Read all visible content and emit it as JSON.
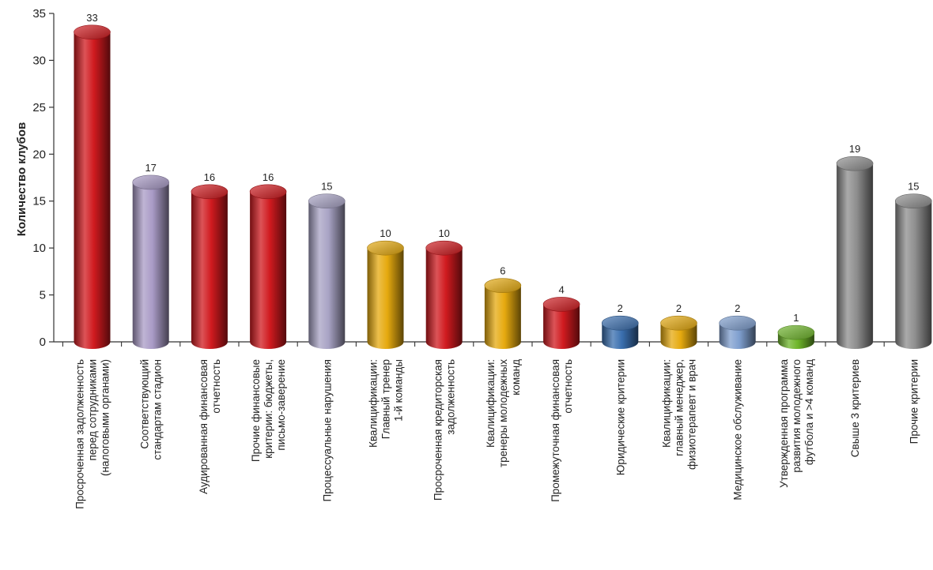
{
  "chart_data": {
    "type": "bar",
    "title": "",
    "xlabel": "",
    "ylabel": "Количество клубов",
    "ylim": [
      0,
      35
    ],
    "yticks": [
      0,
      5,
      10,
      15,
      20,
      25,
      30,
      35
    ],
    "grid": false,
    "legend": "none",
    "categories": [
      "Просроченная задолженность перед сотрудниками (налоговыми органами)",
      "Соответствующий стандартам стадион",
      "Аудированная финансовая отчетность",
      "Прочие финансовые критерии: бюджеты, письмо-заверение",
      "Процессуальные нарушения",
      "Квалицификации: Главный тренер 1-й команды",
      "Просроченная кредиторская задолженность",
      "Квалицификации: тренеры молодежных команд",
      "Промежуточная финансовая отчетность",
      "Юридические критерии",
      "Квалицификации: главный менеджер, физиотерапевт и врач",
      "Медицинское обслуживание",
      "Утвержденная программа развития молодежного футбола и >4 команд",
      "Свыше 3 критериев",
      "Прочие критерии"
    ],
    "category_lines": [
      [
        "Просроченная задолженность",
        "перед сотрудниками",
        "(налоговыми органами)"
      ],
      [
        "Соответствующий",
        "стандартам стадион"
      ],
      [
        "Аудированная финансовая",
        "отчетность"
      ],
      [
        "Прочие финансовые",
        "критерии: бюджеты,",
        "письмо-заверение"
      ],
      [
        "Процессуальные нарушения"
      ],
      [
        "Квалицификации:",
        "Главный тренер",
        "1-й команды"
      ],
      [
        "Просроченная кредиторская",
        "задолженность"
      ],
      [
        "Квалицификации:",
        "тренеры молодежных",
        "команд"
      ],
      [
        "Промежуточная финансовая",
        "отчетность"
      ],
      [
        "Юридические критерии"
      ],
      [
        "Квалицификации:",
        "главный менеджер,",
        "физиотерапевт и врач"
      ],
      [
        "Медицинское обслуживание"
      ],
      [
        "Утвержденная программа",
        "развития молодежного",
        "футбола и >4 команд"
      ],
      [
        "Свыше 3 критериев"
      ],
      [
        "Прочие критерии"
      ]
    ],
    "values": [
      33,
      17,
      16,
      16,
      15,
      10,
      10,
      6,
      4,
      2,
      2,
      2,
      1,
      19,
      15
    ],
    "bar_colors": [
      "#d01a1f",
      "#a99bc6",
      "#d01a1f",
      "#d01a1f",
      "#a8a3c4",
      "#e6aa0f",
      "#d01a1f",
      "#e6aa0f",
      "#d01a1f",
      "#3a6faf",
      "#e6aa0f",
      "#7f9fcf",
      "#6eb52a",
      "#8e8e8e",
      "#8e8e8e"
    ]
  }
}
